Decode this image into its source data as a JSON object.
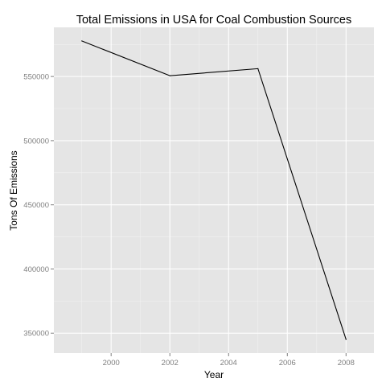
{
  "chart_data": {
    "type": "line",
    "title": "Total Emissions in USA for Coal Combustion Sources",
    "xlabel": "Year",
    "ylabel": "Tons Of Emissions",
    "x": [
      1999,
      2002,
      2005,
      2008
    ],
    "series": [
      {
        "values": [
          577700,
          550600,
          556100,
          345100
        ],
        "color": "#000000"
      }
    ],
    "xlim": [
      1998.05,
      2008.95
    ],
    "ylim": [
      334500,
      588300
    ],
    "x_ticks": [
      2000,
      2002,
      2004,
      2006,
      2008
    ],
    "x_tick_labels": [
      "2000",
      "2002",
      "2004",
      "2006",
      "2008"
    ],
    "y_ticks": [
      350000,
      400000,
      450000,
      500000,
      550000
    ],
    "y_tick_labels": [
      "350000",
      "400000",
      "450000",
      "500000",
      "550000"
    ],
    "grid": true,
    "colors": {
      "panel_background": "#e5e5e5",
      "grid_major": "#ffffff",
      "grid_minor": "#f2f2f2",
      "line": "#000000",
      "tick_label": "#7f7f7f",
      "tick_mark": "#7f7f7f"
    }
  }
}
